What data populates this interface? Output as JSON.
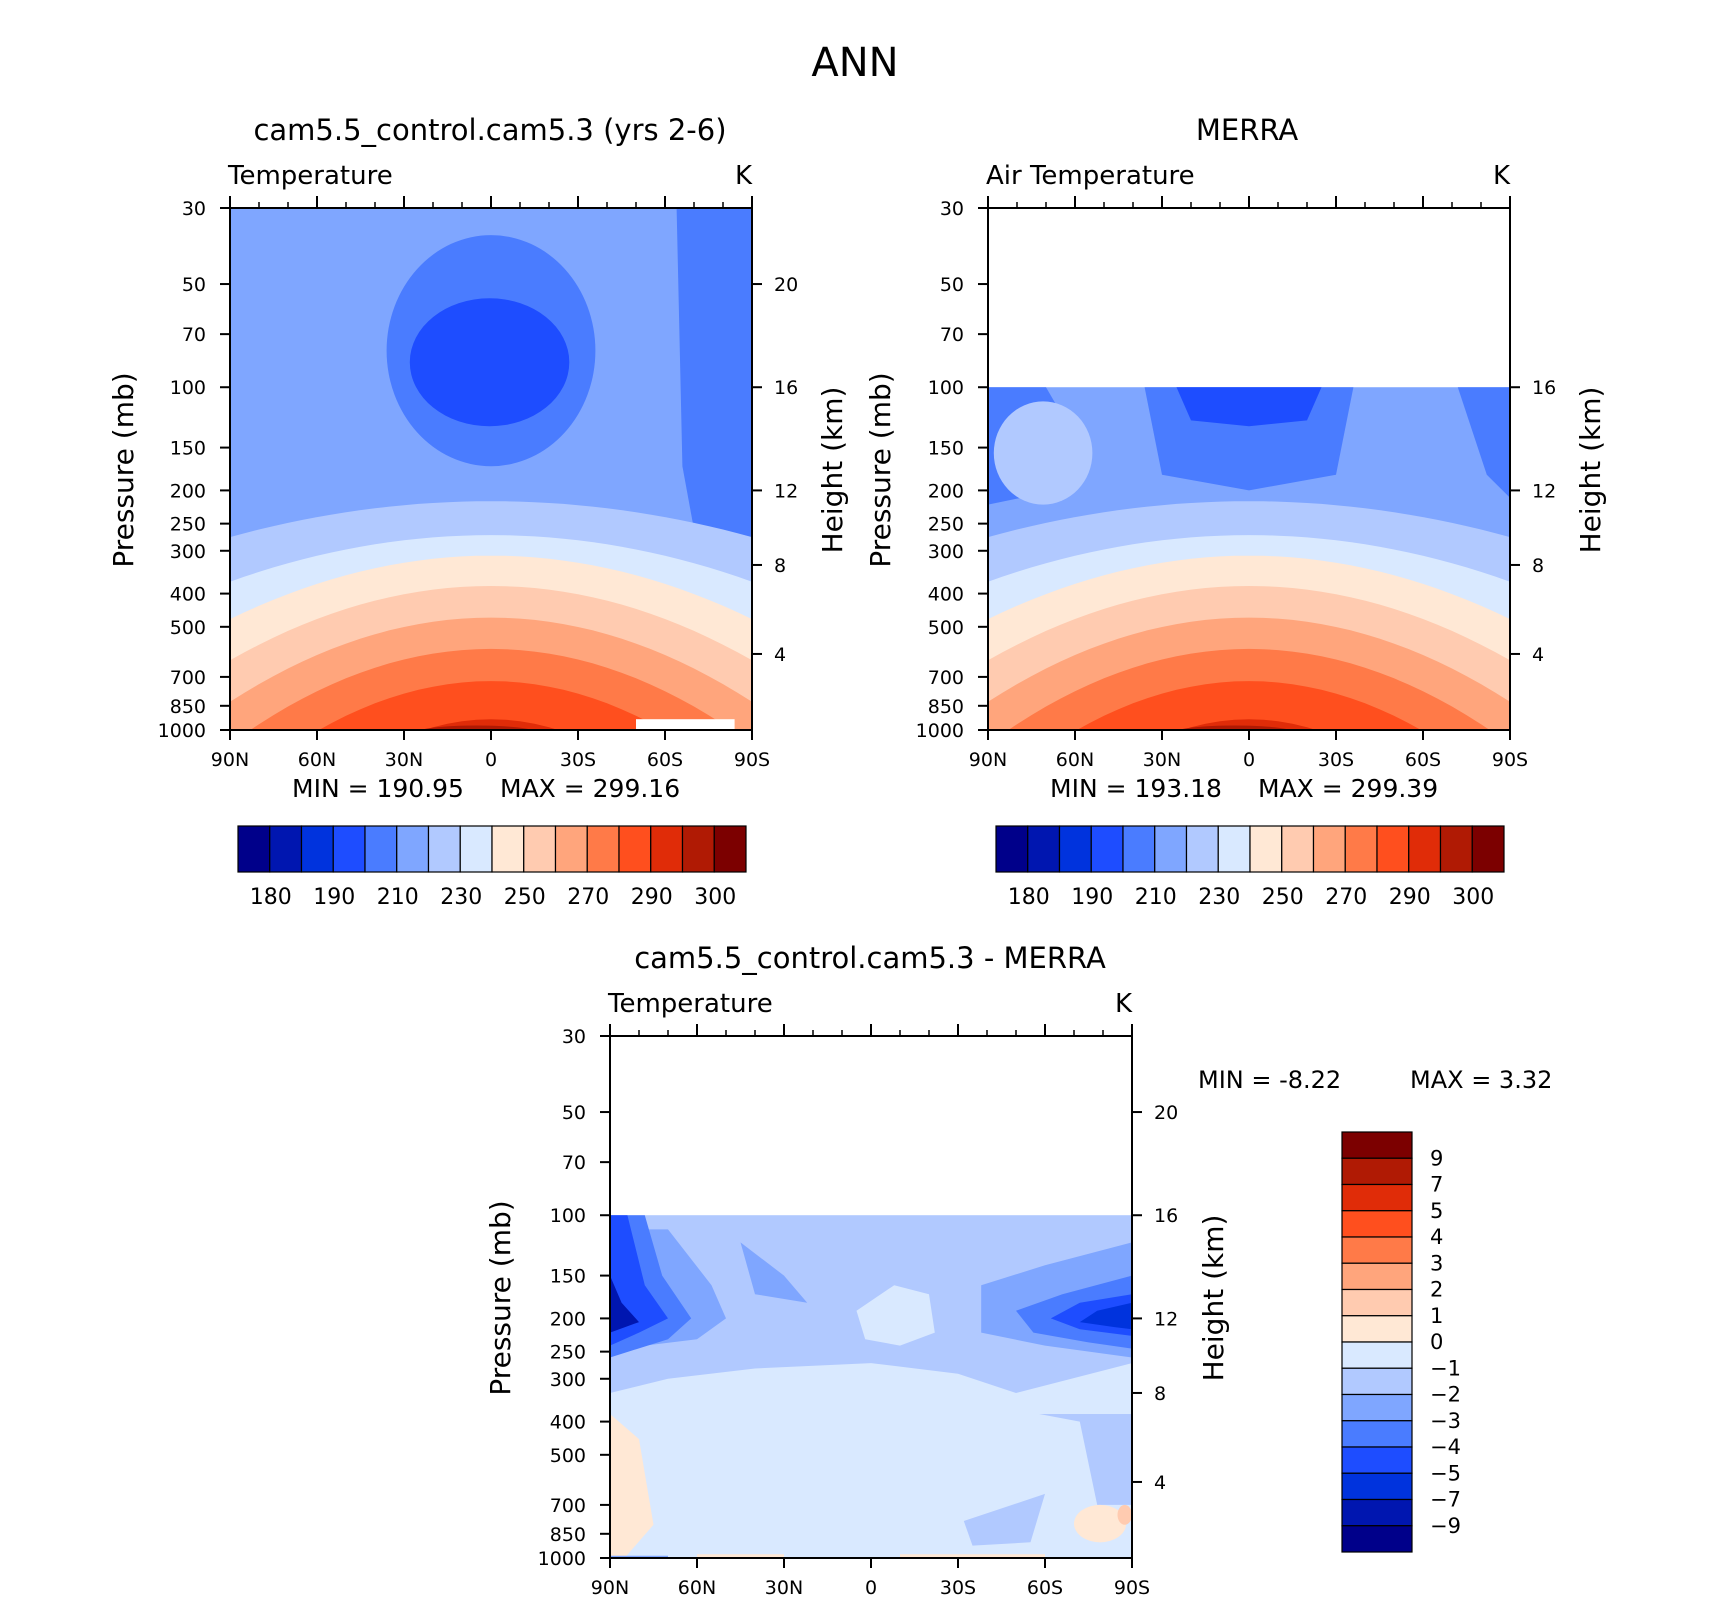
{
  "page_title": "ANN",
  "chart_data": [
    {
      "type": "heatmap",
      "title": "cam5.5_control.cam5.3 (yrs 2-6)",
      "subtitle": "Temperature",
      "units": "K",
      "ylabel": "Pressure (mb)",
      "y2label": "Height (km)",
      "x_ticks": [
        "90N",
        "60N",
        "30N",
        "0",
        "30S",
        "60S",
        "90S"
      ],
      "y_ticks": [
        "30",
        "50",
        "70",
        "100",
        "150",
        "200",
        "250",
        "300",
        "400",
        "500",
        "700",
        "850",
        "1000"
      ],
      "y2_ticks": [
        "20",
        "16",
        "12",
        "8",
        "4"
      ],
      "top_pressure": 30,
      "min_label": "MIN = 190.95",
      "max_label": "MAX = 299.16",
      "colorbar_labels": [
        "180",
        "190",
        "210",
        "230",
        "250",
        "270",
        "290",
        "300"
      ]
    },
    {
      "type": "heatmap",
      "title": "MERRA",
      "subtitle": "Air Temperature",
      "units": "K",
      "ylabel": "Pressure (mb)",
      "y2label": "Height (km)",
      "x_ticks": [
        "90N",
        "60N",
        "30N",
        "0",
        "30S",
        "60S",
        "90S"
      ],
      "y_ticks": [
        "30",
        "50",
        "70",
        "100",
        "150",
        "200",
        "250",
        "300",
        "400",
        "500",
        "700",
        "850",
        "1000"
      ],
      "y2_ticks": [
        "16",
        "12",
        "8",
        "4"
      ],
      "top_pressure": 100,
      "min_label": "MIN = 193.18",
      "max_label": "MAX = 299.39",
      "colorbar_labels": [
        "180",
        "190",
        "210",
        "230",
        "250",
        "270",
        "290",
        "300"
      ]
    },
    {
      "type": "heatmap",
      "title": "cam5.5_control.cam5.3 - MERRA",
      "subtitle": "Temperature",
      "units": "K",
      "ylabel": "Pressure (mb)",
      "y2label": "Height (km)",
      "x_ticks": [
        "90N",
        "60N",
        "30N",
        "0",
        "30S",
        "60S",
        "90S"
      ],
      "y_ticks": [
        "30",
        "50",
        "70",
        "100",
        "150",
        "200",
        "250",
        "300",
        "400",
        "500",
        "700",
        "850",
        "1000"
      ],
      "y2_ticks": [
        "20",
        "16",
        "12",
        "8",
        "4"
      ],
      "top_pressure": 100,
      "min_label": "MIN = -8.22",
      "max_label": "MAX = 3.32",
      "colorbar_labels": [
        "9",
        "7",
        "5",
        "4",
        "3",
        "2",
        "1",
        "0",
        "-1",
        "-2",
        "-3",
        "-4",
        "-5",
        "-7",
        "-9"
      ]
    }
  ],
  "colors": {
    "abs_scale": [
      "#00008a",
      "#0016b0",
      "#0033dd",
      "#1e4dff",
      "#4a7cff",
      "#7fa6ff",
      "#b1c9ff",
      "#d9e9ff",
      "#ffe8d5",
      "#ffcbb0",
      "#ffa57c",
      "#ff7a48",
      "#ff4f1e",
      "#e02c08",
      "#b01a04",
      "#7c0000"
    ],
    "diff_scale": [
      "#7c0000",
      "#b01a04",
      "#e02c08",
      "#ff4f1e",
      "#ff7a48",
      "#ffa57c",
      "#ffcbb0",
      "#ffe8d5",
      "#d9e9ff",
      "#b1c9ff",
      "#7fa6ff",
      "#4a7cff",
      "#1e4dff",
      "#0033dd",
      "#0016b0",
      "#00008a"
    ]
  }
}
